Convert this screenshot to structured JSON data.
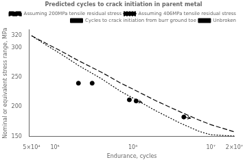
{
  "chart_data": {
    "type": "line",
    "title": "Predicted cycles to crack initiation in parent metal",
    "xlabel": "Endurance, cycles",
    "ylabel": "Nominal or equivalent stress range, MPa",
    "log": "x",
    "xlim": [
      47000.0,
      20000000.0
    ],
    "ylim": [
      150,
      330
    ],
    "xticks": [
      {
        "value": 50000.0,
        "label": "5×10⁴"
      },
      {
        "value": 100000.0,
        "label": "10⁵"
      },
      {
        "value": 1000000.0,
        "label": "10⁶"
      },
      {
        "value": 10000000.0,
        "label": "10⁷"
      },
      {
        "value": 20000000.0,
        "label": "2×10⁷"
      }
    ],
    "yticks": [
      150,
      200,
      250,
      300,
      320
    ],
    "grid": false,
    "legend": "upper right",
    "series": [
      {
        "name": "Assuming 200MPa tensile residual stress",
        "type": "line",
        "line_style": "dashed",
        "color": "#000000",
        "x": [
          50000.0,
          80000.0,
          120000.0,
          200000.0,
          400000.0,
          700000.0,
          1000000.0,
          2000000.0,
          4000000.0,
          7000000.0,
          10000000.0,
          20000000.0
        ],
        "values": [
          320,
          306,
          294,
          278,
          258,
          240,
          230,
          210,
          192,
          178,
          170,
          158
        ]
      },
      {
        "name": "Assuming 406MPa tensile residual stress",
        "type": "line",
        "line_style": "dotted",
        "color": "#000000",
        "x": [
          50000.0,
          80000.0,
          120000.0,
          200000.0,
          400000.0,
          700000.0,
          1000000.0,
          2000000.0,
          4000000.0,
          7000000.0,
          10000000.0,
          20000000.0
        ],
        "values": [
          320,
          303,
          289,
          270,
          247,
          226,
          215,
          193,
          173,
          159,
          153,
          151
        ]
      },
      {
        "name": "Cycles to crack initiation from burr ground toe",
        "type": "scatter",
        "marker": "circle",
        "color": "#000000",
        "x": [
          200000.0,
          300000.0,
          900000.0,
          1100000.0,
          4500000.0
        ],
        "values": [
          240,
          240,
          212,
          210,
          183
        ]
      },
      {
        "name": "Unbroken",
        "type": "arrow",
        "color": "#000000",
        "x": [
          4500000.0,
          1100000.0
        ],
        "values": [
          183,
          210
        ],
        "x_end": [
          5500000.0,
          1300000.0
        ],
        "values_end": [
          181,
          208
        ]
      }
    ]
  }
}
